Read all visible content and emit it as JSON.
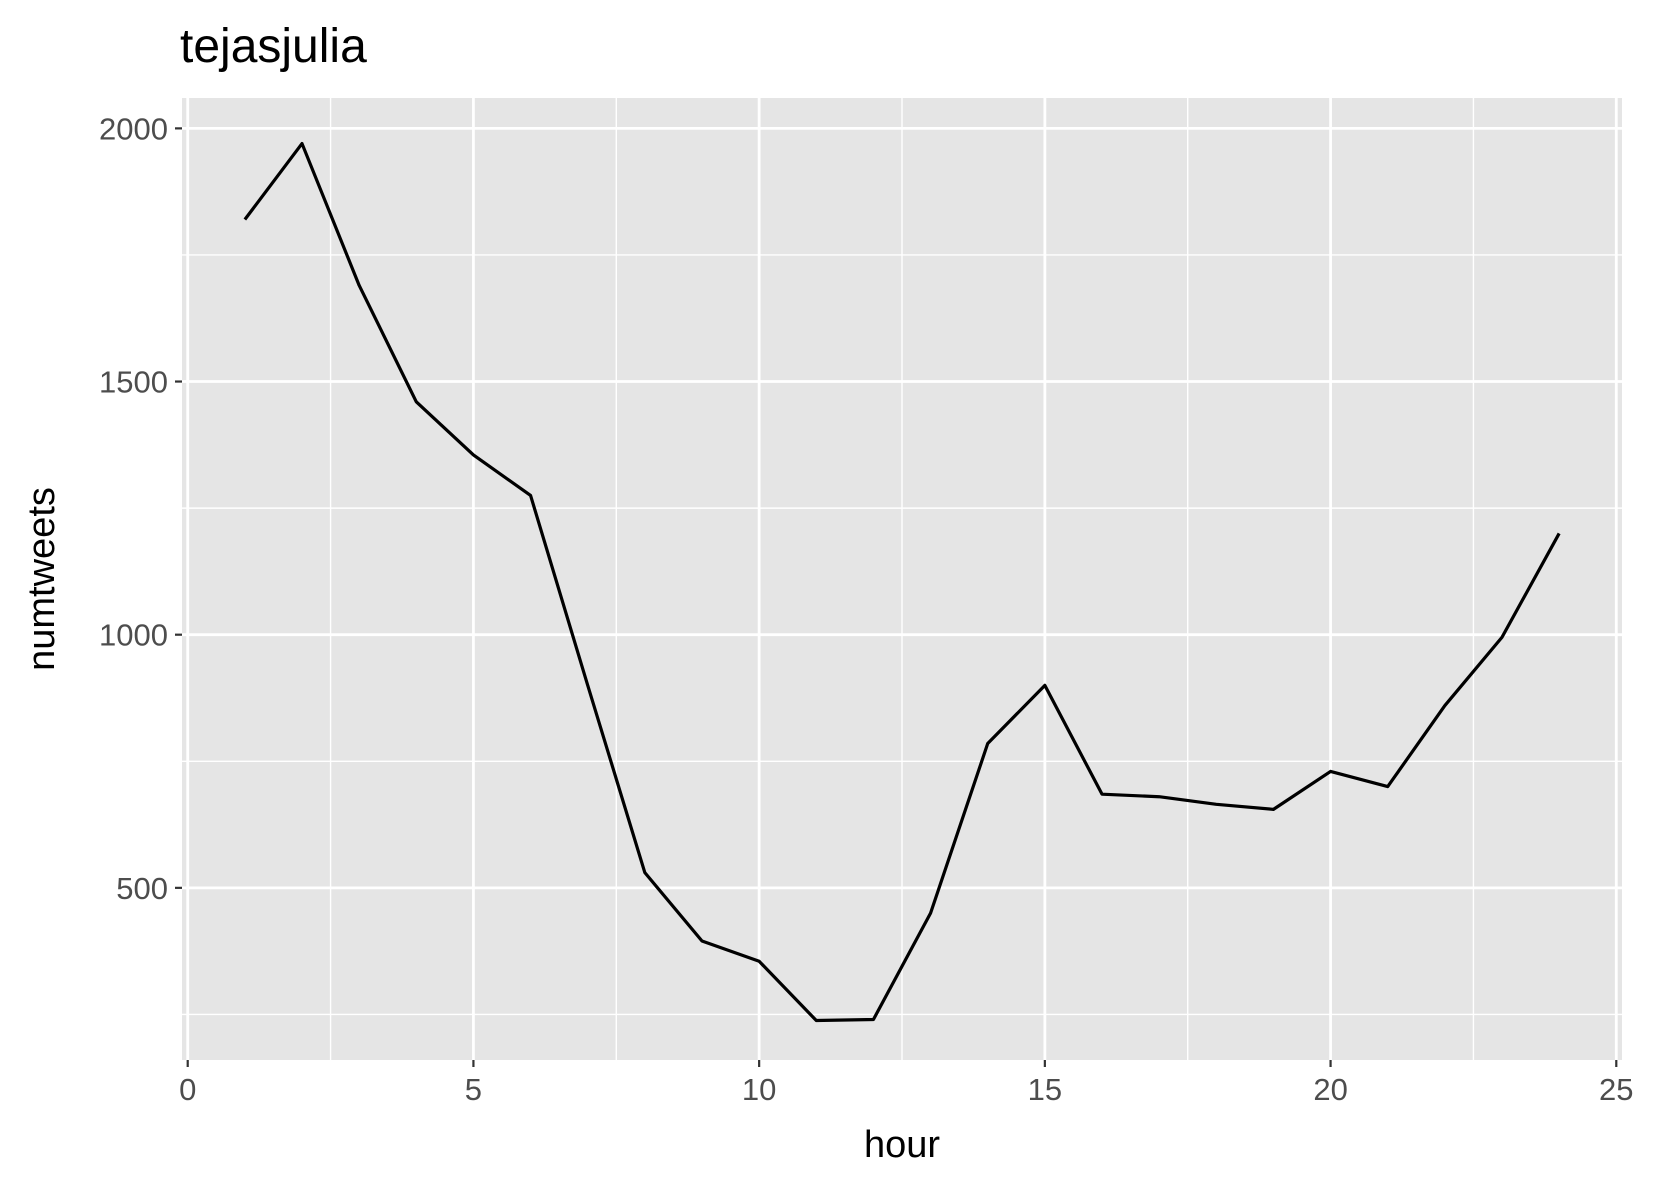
{
  "chart_data": {
    "type": "line",
    "title": "tejasjulia",
    "xlabel": "hour",
    "ylabel": "numtweets",
    "xlim": [
      -0.1,
      25.1
    ],
    "ylim": [
      160,
      2060
    ],
    "x_ticks": [
      0,
      5,
      10,
      15,
      20,
      25
    ],
    "x_minor_ticks": [
      2.5,
      7.5,
      12.5,
      17.5,
      22.5
    ],
    "y_ticks": [
      500,
      1000,
      1500,
      2000
    ],
    "y_minor_ticks": [
      250,
      750,
      1250,
      1750
    ],
    "x_tick_labels": [
      "0",
      "5",
      "10",
      "15",
      "20",
      "25"
    ],
    "y_tick_labels": [
      "500",
      "1000",
      "1500",
      "2000"
    ],
    "grid": true,
    "colors": {
      "panel_background": "#e5e5e5",
      "grid": "#ffffff",
      "line": "#000000",
      "tick_text": "#4d4d4d",
      "tick_mark": "#333333"
    },
    "series": [
      {
        "x": [
          1,
          2,
          3,
          4,
          5,
          6,
          7,
          8,
          9,
          10,
          11,
          12,
          13,
          14,
          15,
          16,
          17,
          18,
          19,
          20,
          21,
          22,
          23,
          24
        ],
        "values": [
          1820,
          1970,
          1690,
          1460,
          1355,
          1275,
          900,
          530,
          395,
          355,
          238,
          240,
          450,
          785,
          900,
          685,
          680,
          665,
          655,
          730,
          700,
          860,
          995,
          1200
        ]
      }
    ]
  }
}
